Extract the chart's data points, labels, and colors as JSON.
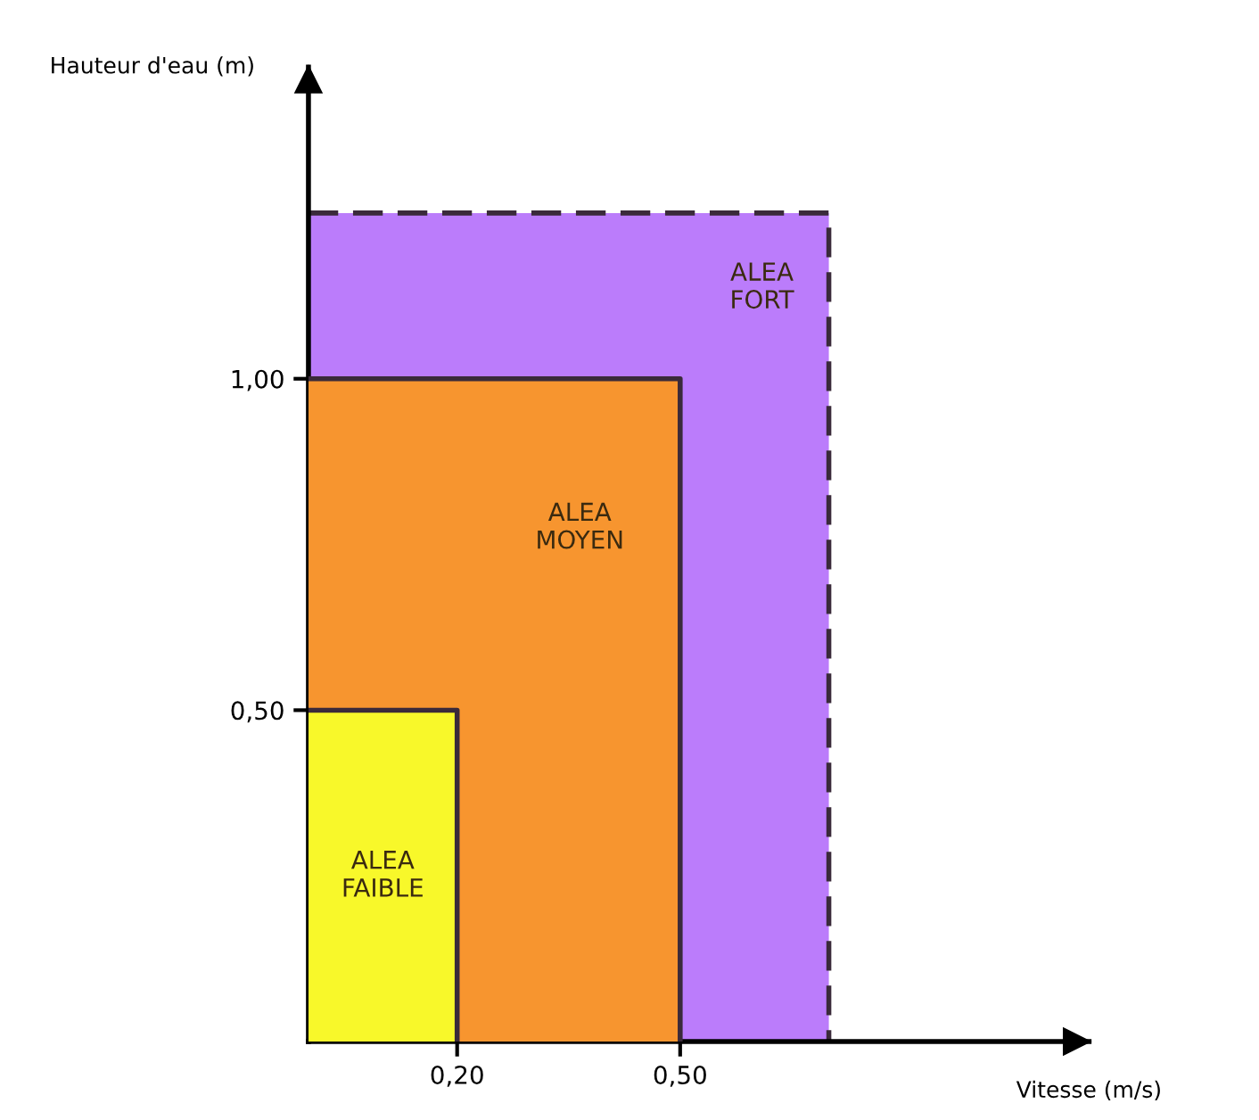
{
  "chart_data": {
    "type": "area",
    "xlabel": "Vitesse (m/s)",
    "ylabel": "Hauteur d'eau (m)",
    "xlim": [
      0,
      1.05
    ],
    "ylim": [
      0,
      1.47
    ],
    "xticks": [
      {
        "value": 0.2,
        "label": "0,20"
      },
      {
        "value": 0.5,
        "label": "0,50"
      }
    ],
    "yticks": [
      {
        "value": 0.5,
        "label": "0,50"
      },
      {
        "value": 1.0,
        "label": "1,00"
      }
    ],
    "grid": false,
    "marker": "none",
    "series": [
      {
        "name": "ALEA\nFORT",
        "color": "#bb7cfb",
        "x": [
          0,
          0.7
        ],
        "values": [
          1.25,
          1.25
        ],
        "line_style": "dashed"
      },
      {
        "name": "ALEA\nMOYEN",
        "color": "#f7952f",
        "x": [
          0,
          0.5
        ],
        "values": [
          1.0,
          1.0
        ],
        "line_style": "solid"
      },
      {
        "name": "ALEA\nFAIBLE",
        "color": "#f8f82a",
        "x": [
          0,
          0.2
        ],
        "values": [
          0.5,
          0.5
        ],
        "line_style": "solid"
      }
    ]
  }
}
